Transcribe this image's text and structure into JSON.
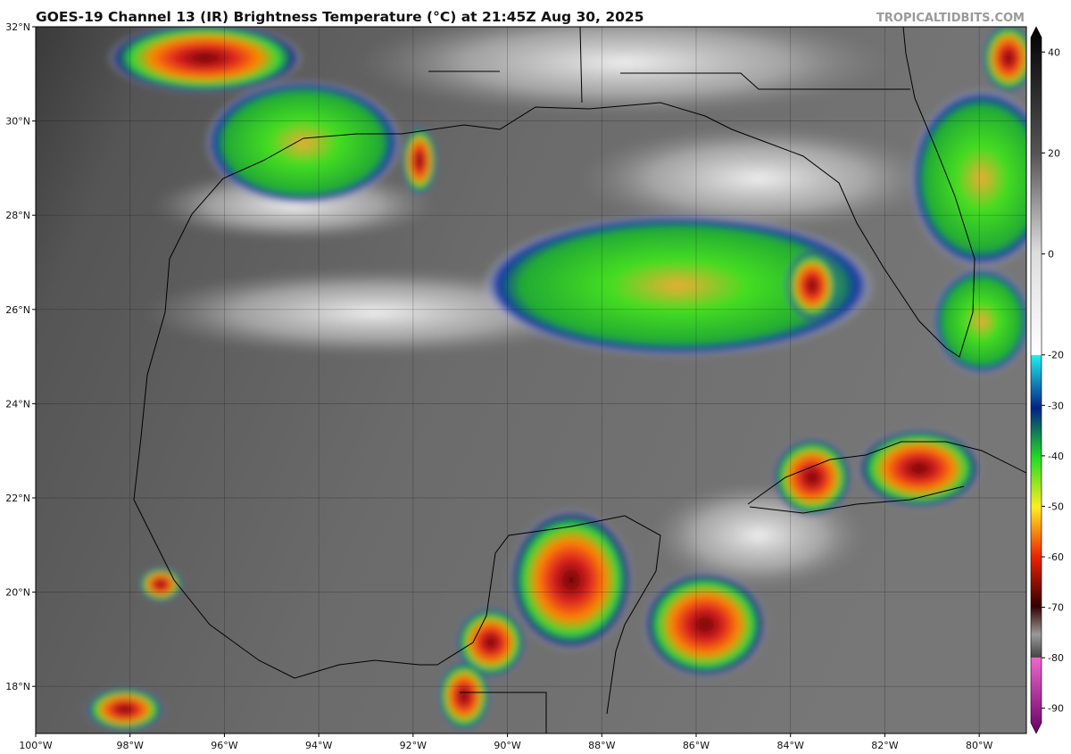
{
  "header": {
    "title": "GOES-19 Channel 13 (IR) Brightness Temperature (°C) at 21:45Z Aug 30, 2025",
    "credit": "TROPICALTIDBITS.COM"
  },
  "map": {
    "lon_range": [
      -100,
      -79
    ],
    "lat_range": [
      17,
      32
    ],
    "lon_labels": [
      {
        "value": -100,
        "label": "100°W"
      },
      {
        "value": -98,
        "label": "98°W"
      },
      {
        "value": -96,
        "label": "96°W"
      },
      {
        "value": -94,
        "label": "94°W"
      },
      {
        "value": -92,
        "label": "92°W"
      },
      {
        "value": -90,
        "label": "90°W"
      },
      {
        "value": -88,
        "label": "88°W"
      },
      {
        "value": -86,
        "label": "86°W"
      },
      {
        "value": -84,
        "label": "84°W"
      },
      {
        "value": -82,
        "label": "82°W"
      },
      {
        "value": -80,
        "label": "80°W"
      }
    ],
    "lat_labels": [
      {
        "value": 32,
        "label": "32°N"
      },
      {
        "value": 30,
        "label": "30°N"
      },
      {
        "value": 28,
        "label": "28°N"
      },
      {
        "value": 26,
        "label": "26°N"
      },
      {
        "value": 24,
        "label": "24°N"
      },
      {
        "value": 22,
        "label": "22°N"
      },
      {
        "value": 20,
        "label": "20°N"
      },
      {
        "value": 18,
        "label": "18°N"
      }
    ],
    "colorbar": {
      "lim": [
        -95,
        45
      ],
      "ticks": [
        40,
        20,
        0,
        -20,
        -30,
        -40,
        -50,
        -60,
        -70,
        -80,
        -90
      ]
    }
  }
}
